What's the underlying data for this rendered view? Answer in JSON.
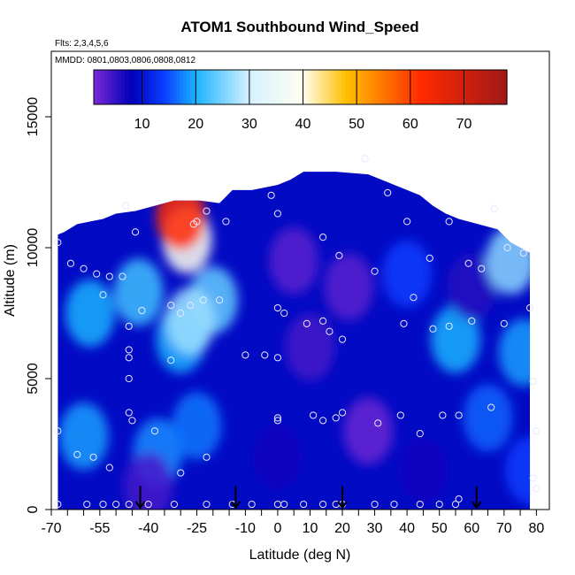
{
  "chart_data": {
    "type": "heatmap",
    "title": "ATOM1 Southbound Wind_Speed",
    "annotations": [
      "Flts: 2,3,4,5,6",
      "MMDD: 0801,0803,0806,0808,0812"
    ],
    "xlabel": "Latitude (deg N)",
    "ylabel": "Altitude (m)",
    "xlim": [
      -70,
      84
    ],
    "ylim": [
      0,
      17500
    ],
    "x_ticks": [
      "-70",
      "-55",
      "-40",
      "-25",
      "-10",
      "0",
      "10",
      "20",
      "30",
      "40",
      "50",
      "60",
      "70",
      "80"
    ],
    "x_tick_values": [
      -70,
      -55,
      -40,
      -25,
      -10,
      0,
      10,
      20,
      30,
      40,
      50,
      60,
      70,
      80
    ],
    "x_minor_ticks": [
      -65,
      -60,
      -50,
      -45,
      -35,
      -30,
      -20,
      -15,
      -5,
      5,
      15,
      25,
      35,
      45,
      55,
      65,
      75
    ],
    "y_ticks": [
      "0",
      "5000",
      "10000",
      "15000"
    ],
    "y_tick_values": [
      0,
      5000,
      10000,
      15000
    ],
    "colorbar": {
      "range": [
        1,
        78
      ],
      "ticks": [
        "10",
        "20",
        "30",
        "40",
        "50",
        "60",
        "70"
      ],
      "tick_values": [
        10,
        20,
        30,
        40,
        50,
        60,
        70
      ],
      "colors": [
        "#7c2ad8",
        "#0000b8",
        "#0a3cff",
        "#1ab2ff",
        "#d6f2ff",
        "#fffff0",
        "#ffc000",
        "#ff2a00",
        "#a01818"
      ],
      "color_stops": [
        1,
        8,
        14,
        20,
        30,
        40,
        48,
        62,
        78
      ]
    },
    "ceiling_altitude": [
      [
        -68,
        10500
      ],
      [
        -66,
        10600
      ],
      [
        -62,
        10900
      ],
      [
        -58,
        11000
      ],
      [
        -54,
        11100
      ],
      [
        -50,
        11300
      ],
      [
        -44,
        11400
      ],
      [
        -38,
        11600
      ],
      [
        -32,
        11800
      ],
      [
        -24,
        11800
      ],
      [
        -18,
        11700
      ],
      [
        -14,
        12200
      ],
      [
        -8,
        12200
      ],
      [
        0,
        12400
      ],
      [
        4,
        12600
      ],
      [
        8,
        12900
      ],
      [
        18,
        12900
      ],
      [
        28,
        12800
      ],
      [
        32,
        12600
      ],
      [
        38,
        12300
      ],
      [
        44,
        12000
      ],
      [
        48,
        11600
      ],
      [
        52,
        11300
      ],
      [
        56,
        11100
      ],
      [
        62,
        10900
      ],
      [
        68,
        10700
      ],
      [
        72,
        10200
      ],
      [
        78,
        9800
      ]
    ],
    "wind_field_blobs": [
      {
        "lat": -20,
        "alt": 8000,
        "value": 24
      },
      {
        "lat": -58,
        "alt": 7500,
        "value": 20
      },
      {
        "lat": -43,
        "alt": 8300,
        "value": 22
      },
      {
        "lat": -30,
        "alt": 6500,
        "value": 20
      },
      {
        "lat": -28,
        "alt": 10300,
        "value": 40
      },
      {
        "lat": -30,
        "alt": 11200,
        "value": 62
      },
      {
        "lat": -27,
        "alt": 7200,
        "value": 27
      },
      {
        "lat": -60,
        "alt": 2800,
        "value": 19
      },
      {
        "lat": -37,
        "alt": 2200,
        "value": 18
      },
      {
        "lat": -25,
        "alt": 3200,
        "value": 17
      },
      {
        "lat": 5,
        "alt": 9500,
        "value": 3
      },
      {
        "lat": 22,
        "alt": 8500,
        "value": 3
      },
      {
        "lat": 10,
        "alt": 6200,
        "value": 4
      },
      {
        "lat": 28,
        "alt": 3000,
        "value": 2
      },
      {
        "lat": -40,
        "alt": 900,
        "value": 4
      },
      {
        "lat": 40,
        "alt": 9000,
        "value": 14
      },
      {
        "lat": 55,
        "alt": 6500,
        "value": 20
      },
      {
        "lat": 60,
        "alt": 8500,
        "value": 6
      },
      {
        "lat": 65,
        "alt": 3500,
        "value": 16
      },
      {
        "lat": 72,
        "alt": 9500,
        "value": 26
      },
      {
        "lat": 76,
        "alt": 6000,
        "value": 19
      },
      {
        "lat": 78,
        "alt": 1500,
        "value": 14
      },
      {
        "lat": 45,
        "alt": 1500,
        "value": 7
      },
      {
        "lat": 0,
        "alt": 2000,
        "value": 7
      }
    ],
    "sample_points": [
      [
        -68,
        10200
      ],
      [
        -64,
        9400
      ],
      [
        -60,
        9200
      ],
      [
        -56,
        9000
      ],
      [
        -54,
        8200
      ],
      [
        -52,
        8900
      ],
      [
        -48,
        8900
      ],
      [
        -47,
        11600
      ],
      [
        -46,
        7000
      ],
      [
        -44,
        10600
      ],
      [
        -42,
        7600
      ],
      [
        -33,
        7800
      ],
      [
        -30,
        7500
      ],
      [
        -27,
        7800
      ],
      [
        -25,
        11000
      ],
      [
        -22,
        11400
      ],
      [
        -23,
        8000
      ],
      [
        -26,
        10900
      ],
      [
        -16,
        11000
      ],
      [
        -18,
        8000
      ],
      [
        -46,
        6100
      ],
      [
        -46,
        5800
      ],
      [
        -46,
        5000
      ],
      [
        -46,
        3700
      ],
      [
        -45,
        3400
      ],
      [
        -38,
        3000
      ],
      [
        -33,
        5700
      ],
      [
        -22,
        2000
      ],
      [
        -30,
        1400
      ],
      [
        -62,
        2100
      ],
      [
        -57,
        2000
      ],
      [
        -52,
        1600
      ],
      [
        -68,
        3000
      ],
      [
        -68,
        200
      ],
      [
        -59,
        200
      ],
      [
        -54,
        200
      ],
      [
        -50,
        200
      ],
      [
        -46,
        200
      ],
      [
        -40,
        200
      ],
      [
        -32,
        200
      ],
      [
        -22,
        200
      ],
      [
        -14,
        200
      ],
      [
        -8,
        200
      ],
      [
        0,
        200
      ],
      [
        2,
        200
      ],
      [
        8,
        200
      ],
      [
        14,
        200
      ],
      [
        18,
        200
      ],
      [
        20,
        200
      ],
      [
        30,
        200
      ],
      [
        36,
        200
      ],
      [
        44,
        200
      ],
      [
        50,
        200
      ],
      [
        55,
        200
      ],
      [
        56,
        400
      ],
      [
        -2,
        12000
      ],
      [
        0,
        11300
      ],
      [
        0,
        7700
      ],
      [
        2,
        7500
      ],
      [
        9,
        7100
      ],
      [
        14,
        7200
      ],
      [
        14,
        10400
      ],
      [
        16,
        6800
      ],
      [
        20,
        6500
      ],
      [
        19,
        9700
      ],
      [
        30,
        9100
      ],
      [
        34,
        12100
      ],
      [
        39,
        7100
      ],
      [
        40,
        11000
      ],
      [
        42,
        8100
      ],
      [
        47,
        9600
      ],
      [
        48,
        6900
      ],
      [
        53,
        11000
      ],
      [
        53,
        7000
      ],
      [
        59,
        9400
      ],
      [
        60,
        7200
      ],
      [
        63,
        9200
      ],
      [
        67,
        11500
      ],
      [
        70,
        7100
      ],
      [
        71,
        10000
      ],
      [
        76,
        9800
      ],
      [
        78,
        7700
      ],
      [
        79,
        4900
      ],
      [
        80,
        3000
      ],
      [
        79,
        1200
      ],
      [
        80,
        800
      ],
      [
        66,
        3900
      ],
      [
        51,
        3600
      ],
      [
        56,
        3600
      ],
      [
        44,
        2900
      ],
      [
        38,
        3600
      ],
      [
        31,
        3300
      ],
      [
        20,
        3700
      ],
      [
        18,
        3500
      ],
      [
        14,
        3400
      ],
      [
        11,
        3600
      ],
      [
        0,
        3500
      ],
      [
        0,
        3400
      ],
      [
        -4,
        5900
      ],
      [
        0,
        5800
      ],
      [
        -10,
        5900
      ],
      [
        27,
        13400
      ]
    ],
    "flight_markers": [
      {
        "lat": -42.5,
        "alt_top": 700
      },
      {
        "lat": -13,
        "alt_top": 700
      },
      {
        "lat": 20,
        "alt_top": 700
      },
      {
        "lat": 61.5,
        "alt_top": 700
      }
    ]
  }
}
